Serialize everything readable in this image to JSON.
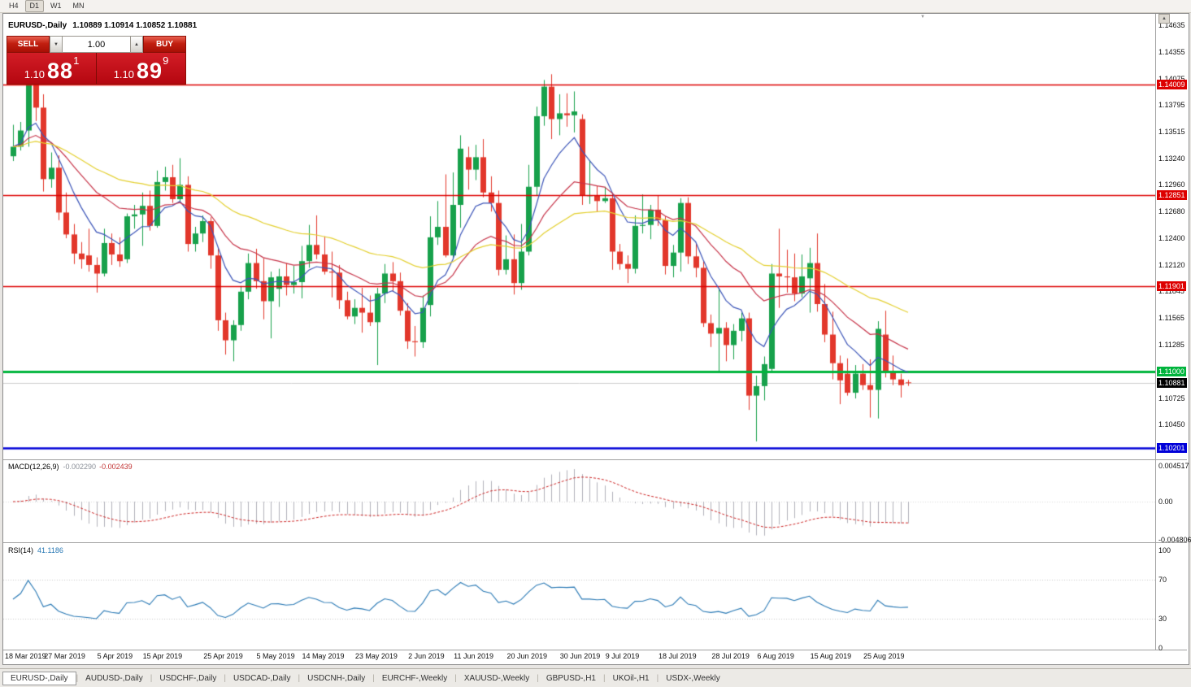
{
  "toolbar": {
    "timeframes": [
      {
        "label": "H4",
        "active": false
      },
      {
        "label": "D1",
        "active": true
      },
      {
        "label": "W1",
        "active": false
      },
      {
        "label": "MN",
        "active": false
      }
    ]
  },
  "chart": {
    "symbol_title": "EURUSD-,Daily",
    "ohlc": "1.10889 1.10914 1.10852 1.10881",
    "one_click": {
      "sell_label": "SELL",
      "buy_label": "BUY",
      "volume": "1.00",
      "sell_price": {
        "base": "1.10",
        "big": "88",
        "pip": "1"
      },
      "buy_price": {
        "base": "1.10",
        "big": "89",
        "pip": "9"
      }
    }
  },
  "icons": {
    "spin_down": "▼",
    "spin_up": "▲",
    "scroll_up": "▲",
    "shift_marker": "▼"
  },
  "price_axis": {
    "grid_labels": [
      {
        "text": "1.14635",
        "price": 1.14635
      },
      {
        "text": "1.14355",
        "price": 1.14355
      },
      {
        "text": "1.14075",
        "price": 1.14075
      },
      {
        "text": "1.13795",
        "price": 1.13795
      },
      {
        "text": "1.13515",
        "price": 1.13515
      },
      {
        "text": "1.13240",
        "price": 1.1324
      },
      {
        "text": "1.12960",
        "price": 1.1296
      },
      {
        "text": "1.12680",
        "price": 1.1268
      },
      {
        "text": "1.12400",
        "price": 1.124
      },
      {
        "text": "1.12120",
        "price": 1.1212
      },
      {
        "text": "1.11845",
        "price": 1.11845
      },
      {
        "text": "1.11565",
        "price": 1.11565
      },
      {
        "text": "1.11285",
        "price": 1.11285
      },
      {
        "text": "1.10725",
        "price": 1.10725
      },
      {
        "text": "1.10450",
        "price": 1.1045
      }
    ],
    "hlines": [
      {
        "price": 1.14009,
        "label": "1.14009",
        "color": "#dd0000",
        "width": 1.4
      },
      {
        "price": 1.12851,
        "label": "1.12851",
        "color": "#dd0000",
        "width": 1.4
      },
      {
        "price": 1.11901,
        "label": "1.11901",
        "color": "#dd0000",
        "width": 1.4
      },
      {
        "price": 1.11,
        "label": "1.11000",
        "color": "#00b43c",
        "width": 3
      },
      {
        "price": 1.10201,
        "label": "1.10201",
        "color": "#0000d8",
        "width": 2.6
      }
    ],
    "current": {
      "price": 1.10881,
      "label": "1.10881",
      "color": "#000000"
    }
  },
  "macd": {
    "name": "MACD(12,26,9)",
    "value_main": "-0.002290",
    "value_signal": "-0.002439",
    "axis": {
      "max": 0.004517,
      "min": -0.004806,
      "max_label": "0.004517",
      "zero_label": "0.00",
      "min_label": "-0.004806"
    }
  },
  "rsi": {
    "name": "RSI(14)",
    "value": "41.1186",
    "levels": [
      70,
      30
    ],
    "axis_labels": [
      {
        "text": "100",
        "value": 100
      },
      {
        "text": "70",
        "value": 70
      },
      {
        "text": "30",
        "value": 30
      },
      {
        "text": "0",
        "value": 0
      }
    ]
  },
  "tabs": [
    {
      "label": "EURUSD-,Daily",
      "active": true
    },
    {
      "label": "AUDUSD-,Daily",
      "active": false
    },
    {
      "label": "USDCHF-,Daily",
      "active": false
    },
    {
      "label": "USDCAD-,Daily",
      "active": false
    },
    {
      "label": "USDCNH-,Daily",
      "active": false
    },
    {
      "label": "EURCHF-,Weekly",
      "active": false
    },
    {
      "label": "XAUUSD-,Weekly",
      "active": false
    },
    {
      "label": "GBPUSD-,H1",
      "active": false
    },
    {
      "label": "UKOil-,H1",
      "active": false
    },
    {
      "label": "USDX-,Weekly",
      "active": false
    }
  ],
  "chart_data": {
    "type": "candlestick",
    "title": "EURUSD-,Daily",
    "symbol": "EURUSD",
    "timeframe": "Daily",
    "y_range": [
      1.1009,
      1.1466
    ],
    "colors": {
      "up": "#17a14b",
      "down": "#e2372b"
    },
    "moving_averages": [
      {
        "name": "ma-fast",
        "period": 8,
        "color": "#3c55b8"
      },
      {
        "name": "ma-medium",
        "period": 20,
        "color": "#c63348"
      },
      {
        "name": "ma-slow",
        "period": 45,
        "color": "#e3cf2e"
      }
    ],
    "x_labels": [
      {
        "text": "18 Mar 2019",
        "index": 0
      },
      {
        "text": "27 Mar 2019",
        "index": 7
      },
      {
        "text": "5 Apr 2019",
        "index": 14
      },
      {
        "text": "15 Apr 2019",
        "index": 20
      },
      {
        "text": "25 Apr 2019",
        "index": 28
      },
      {
        "text": "5 May 2019",
        "index": 35
      },
      {
        "text": "14 May 2019",
        "index": 41
      },
      {
        "text": "23 May 2019",
        "index": 48
      },
      {
        "text": "2 Jun 2019",
        "index": 55
      },
      {
        "text": "11 Jun 2019",
        "index": 61
      },
      {
        "text": "20 Jun 2019",
        "index": 68
      },
      {
        "text": "30 Jun 2019",
        "index": 75
      },
      {
        "text": "9 Jul 2019",
        "index": 81
      },
      {
        "text": "18 Jul 2019",
        "index": 88
      },
      {
        "text": "28 Jul 2019",
        "index": 95
      },
      {
        "text": "6 Aug 2019",
        "index": 101
      },
      {
        "text": "15 Aug 2019",
        "index": 108
      },
      {
        "text": "25 Aug 2019",
        "index": 115
      }
    ],
    "candles": [
      [
        "2019.03.18",
        1.1326,
        1.1359,
        1.1321,
        1.1336
      ],
      [
        "2019.03.19",
        1.1336,
        1.1362,
        1.1332,
        1.1353
      ],
      [
        "2019.03.20",
        1.1353,
        1.1448,
        1.1336,
        1.1413
      ],
      [
        "2019.03.21",
        1.1413,
        1.1438,
        1.1363,
        1.1377
      ],
      [
        "2019.03.22",
        1.1377,
        1.1391,
        1.1289,
        1.1302
      ],
      [
        "2019.03.25",
        1.1302,
        1.133,
        1.1293,
        1.1314
      ],
      [
        "2019.03.26",
        1.1314,
        1.1327,
        1.1259,
        1.1267
      ],
      [
        "2019.03.27",
        1.1267,
        1.1288,
        1.124,
        1.1244
      ],
      [
        "2019.03.28",
        1.1244,
        1.1255,
        1.1213,
        1.1224
      ],
      [
        "2019.03.29",
        1.1224,
        1.1236,
        1.1208,
        1.1218
      ],
      [
        "2019.04.01",
        1.1222,
        1.125,
        1.1205,
        1.1212
      ],
      [
        "2019.04.02",
        1.1212,
        1.122,
        1.1183,
        1.1203
      ],
      [
        "2019.04.03",
        1.1203,
        1.125,
        1.12,
        1.1235
      ],
      [
        "2019.04.04",
        1.1235,
        1.1245,
        1.1212,
        1.1223
      ],
      [
        "2019.04.05",
        1.1223,
        1.1241,
        1.121,
        1.1216
      ],
      [
        "2019.04.08",
        1.1218,
        1.1266,
        1.1214,
        1.1263
      ],
      [
        "2019.04.09",
        1.1263,
        1.1275,
        1.125,
        1.1265
      ],
      [
        "2019.04.10",
        1.1265,
        1.1288,
        1.1232,
        1.1274
      ],
      [
        "2019.04.11",
        1.1274,
        1.129,
        1.1248,
        1.1253
      ],
      [
        "2019.04.12",
        1.1253,
        1.1311,
        1.1251,
        1.1299
      ],
      [
        "2019.04.15",
        1.1299,
        1.1315,
        1.129,
        1.1304
      ],
      [
        "2019.04.16",
        1.1304,
        1.1317,
        1.1277,
        1.1281
      ],
      [
        "2019.04.17",
        1.1281,
        1.1324,
        1.1278,
        1.1296
      ],
      [
        "2019.04.18",
        1.1296,
        1.1305,
        1.1226,
        1.1234
      ],
      [
        "2019.04.19",
        1.1234,
        1.1252,
        1.1226,
        1.1245
      ],
      [
        "2019.04.22",
        1.1245,
        1.1264,
        1.1236,
        1.1258
      ],
      [
        "2019.04.23",
        1.1258,
        1.1262,
        1.1208,
        1.1222
      ],
      [
        "2019.04.24",
        1.1222,
        1.123,
        1.1143,
        1.1154
      ],
      [
        "2019.04.25",
        1.1154,
        1.1162,
        1.1118,
        1.1133
      ],
      [
        "2019.04.26",
        1.1133,
        1.1154,
        1.1111,
        1.1149
      ],
      [
        "2019.04.29",
        1.1149,
        1.119,
        1.1143,
        1.1184
      ],
      [
        "2019.04.30",
        1.1184,
        1.1224,
        1.1176,
        1.1214
      ],
      [
        "2019.05.01",
        1.1214,
        1.1229,
        1.1187,
        1.1195
      ],
      [
        "2019.05.02",
        1.1195,
        1.1219,
        1.1155,
        1.1174
      ],
      [
        "2019.05.03",
        1.1174,
        1.1205,
        1.1135,
        1.1199
      ],
      [
        "2019.05.06",
        1.1187,
        1.1208,
        1.1168,
        1.12
      ],
      [
        "2019.05.07",
        1.12,
        1.1214,
        1.118,
        1.1191
      ],
      [
        "2019.05.08",
        1.1191,
        1.1211,
        1.1182,
        1.1194
      ],
      [
        "2019.05.09",
        1.1194,
        1.1232,
        1.1177,
        1.1216
      ],
      [
        "2019.05.10",
        1.1216,
        1.1254,
        1.1209,
        1.1233
      ],
      [
        "2019.05.13",
        1.1233,
        1.1264,
        1.1218,
        1.1223
      ],
      [
        "2019.05.14",
        1.1223,
        1.1242,
        1.1202,
        1.1205
      ],
      [
        "2019.05.15",
        1.1205,
        1.1226,
        1.1178,
        1.1204
      ],
      [
        "2019.05.16",
        1.1204,
        1.1212,
        1.1166,
        1.1175
      ],
      [
        "2019.05.17",
        1.1175,
        1.1184,
        1.1155,
        1.1158
      ],
      [
        "2019.05.20",
        1.1158,
        1.1176,
        1.115,
        1.1167
      ],
      [
        "2019.05.21",
        1.1167,
        1.1188,
        1.1141,
        1.1162
      ],
      [
        "2019.05.22",
        1.1162,
        1.118,
        1.1148,
        1.1152
      ],
      [
        "2019.05.23",
        1.1152,
        1.1188,
        1.1107,
        1.1182
      ],
      [
        "2019.05.24",
        1.1182,
        1.1213,
        1.1172,
        1.1203
      ],
      [
        "2019.05.27",
        1.1203,
        1.1215,
        1.1184,
        1.1195
      ],
      [
        "2019.05.28",
        1.1195,
        1.1204,
        1.1159,
        1.1164
      ],
      [
        "2019.05.29",
        1.1164,
        1.1172,
        1.1124,
        1.1132
      ],
      [
        "2019.05.30",
        1.1132,
        1.1148,
        1.1116,
        1.1131
      ],
      [
        "2019.05.31",
        1.1131,
        1.118,
        1.1125,
        1.1167
      ],
      [
        "2019.06.03",
        1.117,
        1.1263,
        1.1158,
        1.1241
      ],
      [
        "2019.06.04",
        1.1241,
        1.1279,
        1.1233,
        1.1252
      ],
      [
        "2019.06.05",
        1.1252,
        1.1307,
        1.122,
        1.1222
      ],
      [
        "2019.06.06",
        1.1222,
        1.1309,
        1.1219,
        1.1275
      ],
      [
        "2019.06.07",
        1.1275,
        1.1348,
        1.1251,
        1.1334
      ],
      [
        "2019.06.10",
        1.1325,
        1.1336,
        1.1291,
        1.1312
      ],
      [
        "2019.06.11",
        1.1312,
        1.1338,
        1.1301,
        1.1325
      ],
      [
        "2019.06.12",
        1.1325,
        1.1344,
        1.1283,
        1.1288
      ],
      [
        "2019.06.13",
        1.1288,
        1.1305,
        1.1268,
        1.1277
      ],
      [
        "2019.06.14",
        1.1277,
        1.129,
        1.1201,
        1.1207
      ],
      [
        "2019.06.17",
        1.1207,
        1.1243,
        1.1202,
        1.1218
      ],
      [
        "2019.06.18",
        1.1218,
        1.1244,
        1.1181,
        1.1193
      ],
      [
        "2019.06.19",
        1.1193,
        1.1255,
        1.1186,
        1.1226
      ],
      [
        "2019.06.20",
        1.1226,
        1.1317,
        1.1222,
        1.1294
      ],
      [
        "2019.06.21",
        1.1294,
        1.1378,
        1.1285,
        1.1368
      ],
      [
        "2019.06.24",
        1.1368,
        1.1406,
        1.1358,
        1.1399
      ],
      [
        "2019.06.25",
        1.1399,
        1.1412,
        1.1344,
        1.1365
      ],
      [
        "2019.06.26",
        1.1365,
        1.1391,
        1.1348,
        1.1371
      ],
      [
        "2019.06.27",
        1.1371,
        1.1392,
        1.1357,
        1.1369
      ],
      [
        "2019.06.28",
        1.1369,
        1.1394,
        1.1351,
        1.1373
      ],
      [
        "2019.07.01",
        1.1365,
        1.137,
        1.1275,
        1.1285
      ],
      [
        "2019.07.02",
        1.1285,
        1.1322,
        1.1276,
        1.1285
      ],
      [
        "2019.07.03",
        1.1285,
        1.1295,
        1.1268,
        1.1279
      ],
      [
        "2019.07.04",
        1.1279,
        1.1294,
        1.1277,
        1.1282
      ],
      [
        "2019.07.05",
        1.1282,
        1.1288,
        1.1207,
        1.1226
      ],
      [
        "2019.07.08",
        1.1226,
        1.1234,
        1.1207,
        1.1213
      ],
      [
        "2019.07.09",
        1.1213,
        1.1222,
        1.1193,
        1.1208
      ],
      [
        "2019.07.10",
        1.1208,
        1.1264,
        1.1203,
        1.1253
      ],
      [
        "2019.07.11",
        1.1253,
        1.1286,
        1.1245,
        1.1254
      ],
      [
        "2019.07.12",
        1.1254,
        1.1275,
        1.1239,
        1.127
      ],
      [
        "2019.07.15",
        1.127,
        1.1285,
        1.1253,
        1.1259
      ],
      [
        "2019.07.16",
        1.1259,
        1.1263,
        1.1202,
        1.1211
      ],
      [
        "2019.07.17",
        1.1211,
        1.1233,
        1.1199,
        1.1225
      ],
      [
        "2019.07.18",
        1.1225,
        1.1282,
        1.1205,
        1.1277
      ],
      [
        "2019.07.19",
        1.1277,
        1.1283,
        1.1213,
        1.1221
      ],
      [
        "2019.07.22",
        1.1221,
        1.1234,
        1.1199,
        1.1209
      ],
      [
        "2019.07.23",
        1.1209,
        1.1216,
        1.1147,
        1.1151
      ],
      [
        "2019.07.24",
        1.1151,
        1.116,
        1.1126,
        1.114
      ],
      [
        "2019.07.25",
        1.114,
        1.1188,
        1.1101,
        1.1146
      ],
      [
        "2019.07.26",
        1.1146,
        1.1152,
        1.1111,
        1.1128
      ],
      [
        "2019.07.29",
        1.1128,
        1.115,
        1.1113,
        1.1143
      ],
      [
        "2019.07.30",
        1.1143,
        1.1162,
        1.1132,
        1.1156
      ],
      [
        "2019.07.31",
        1.1156,
        1.1162,
        1.106,
        1.1075
      ],
      [
        "2019.08.01",
        1.1075,
        1.1096,
        1.1027,
        1.1085
      ],
      [
        "2019.08.02",
        1.1085,
        1.1116,
        1.107,
        1.1108
      ],
      [
        "2019.08.05",
        1.1103,
        1.1213,
        1.1101,
        1.1203
      ],
      [
        "2019.08.06",
        1.1203,
        1.125,
        1.1167,
        1.12
      ],
      [
        "2019.08.07",
        1.12,
        1.1228,
        1.1183,
        1.1199
      ],
      [
        "2019.08.08",
        1.1199,
        1.1224,
        1.1174,
        1.1182
      ],
      [
        "2019.08.09",
        1.1182,
        1.1223,
        1.1178,
        1.12
      ],
      [
        "2019.08.12",
        1.1198,
        1.123,
        1.1162,
        1.1214
      ],
      [
        "2019.08.13",
        1.1214,
        1.1245,
        1.1163,
        1.1171
      ],
      [
        "2019.08.14",
        1.1171,
        1.1192,
        1.1131,
        1.1139
      ],
      [
        "2019.08.15",
        1.1139,
        1.1163,
        1.1092,
        1.1109
      ],
      [
        "2019.08.16",
        1.1109,
        1.1117,
        1.1066,
        1.1091
      ],
      [
        "2019.08.19",
        1.1098,
        1.1114,
        1.1075,
        1.1078
      ],
      [
        "2019.08.20",
        1.1078,
        1.1107,
        1.1072,
        1.1098
      ],
      [
        "2019.08.21",
        1.1098,
        1.1108,
        1.1081,
        1.1086
      ],
      [
        "2019.08.22",
        1.1086,
        1.1113,
        1.1052,
        1.1081
      ],
      [
        "2019.08.23",
        1.1081,
        1.1153,
        1.1051,
        1.1145
      ],
      [
        "2019.08.26",
        1.1139,
        1.1164,
        1.1094,
        1.1101
      ],
      [
        "2019.08.27",
        1.1101,
        1.1117,
        1.1086,
        1.1092
      ],
      [
        "2019.08.28",
        1.1092,
        1.1098,
        1.1073,
        1.1086
      ],
      [
        "2019.08.29",
        1.10889,
        1.10914,
        1.10852,
        1.10881
      ]
    ]
  }
}
